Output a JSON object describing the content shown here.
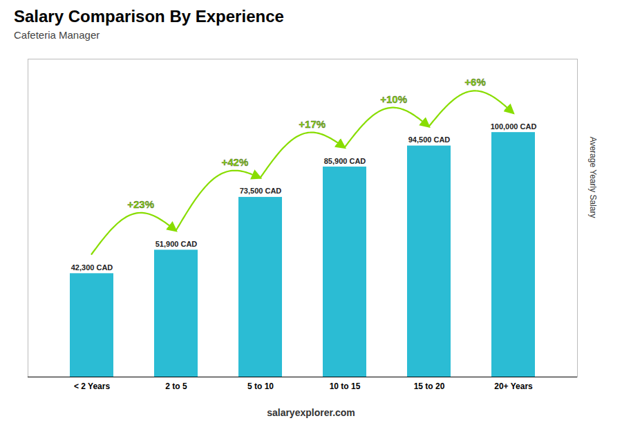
{
  "chart_data": {
    "type": "bar",
    "title": "Salary Comparison By Experience",
    "subtitle": "Cafeteria Manager",
    "categories": [
      "< 2 Years",
      "2 to 5",
      "5 to 10",
      "10 to 15",
      "15 to 20",
      "20+ Years"
    ],
    "values": [
      42300,
      51900,
      73500,
      85900,
      94500,
      100000
    ],
    "value_labels": [
      "42,300 CAD",
      "51,900 CAD",
      "73,500 CAD",
      "85,900 CAD",
      "94,500 CAD",
      "100,000 CAD"
    ],
    "data_labels": true,
    "color": "#2bbcd4",
    "ylabel": "Average Yearly Salary",
    "ylim": [
      0,
      130000
    ],
    "yticks": [],
    "tick_labels": "x",
    "grid": false,
    "annotations": [
      {
        "text": "+23%",
        "from": "< 2 Years",
        "to": "2 to 5",
        "color": "#88dd00"
      },
      {
        "text": "+42%",
        "from": "2 to 5",
        "to": "5 to 10",
        "color": "#88dd00"
      },
      {
        "text": "+17%",
        "from": "5 to 10",
        "to": "10 to 15",
        "color": "#88dd00"
      },
      {
        "text": "+10%",
        "from": "10 to 15",
        "to": "15 to 20",
        "color": "#88dd00"
      },
      {
        "text": "+6%",
        "from": "15 to 20",
        "to": "20+ Years",
        "color": "#88dd00"
      },
      {
        "text": "salaryexplorer.com"
      }
    ]
  }
}
